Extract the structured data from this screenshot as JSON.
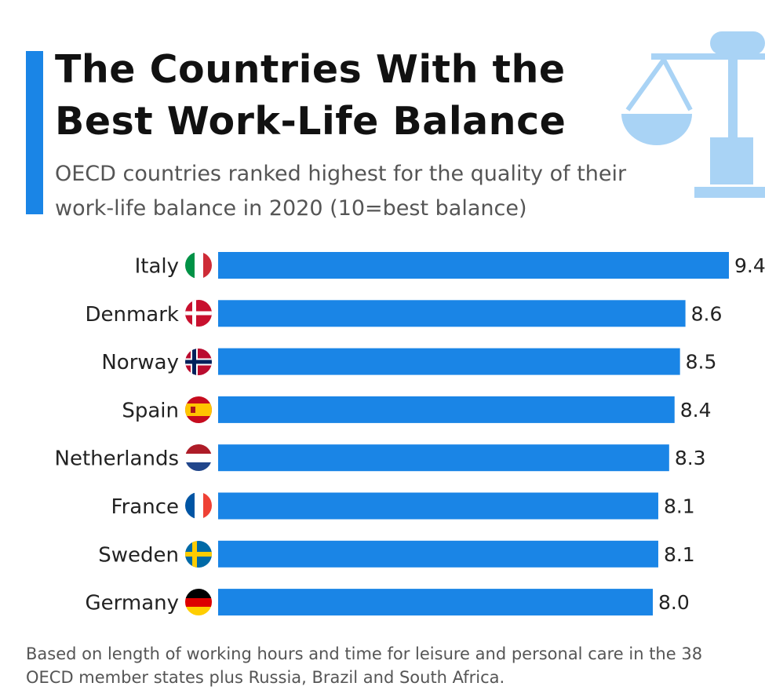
{
  "chart_data": {
    "type": "bar",
    "orientation": "horizontal",
    "title": "The Countries With the Best Work-Life Balance",
    "subtitle": "OECD countries ranked highest for the quality of their work-life balance in 2020 (10=best balance)",
    "categories": [
      "Italy",
      "Denmark",
      "Norway",
      "Spain",
      "Netherlands",
      "France",
      "Sweden",
      "Germany"
    ],
    "values": [
      9.4,
      8.6,
      8.5,
      8.4,
      8.3,
      8.1,
      8.1,
      8.0
    ],
    "value_labels": [
      "9.4",
      "8.6",
      "8.5",
      "8.4",
      "8.3",
      "8.1",
      "8.1",
      "8.0"
    ],
    "color": "#1a85e6",
    "note": "Based on length of working hours and time for leisure and personal care in the 38 OECD member states plus Russia, Brazil and South Africa."
  }
}
